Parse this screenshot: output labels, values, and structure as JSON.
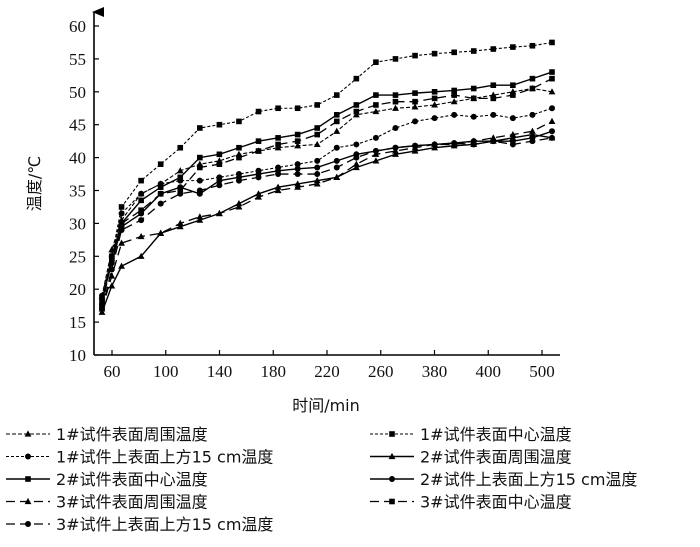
{
  "chart_data": {
    "type": "line",
    "xlabel": "时间/min",
    "ylabel": "温度/℃",
    "ylim": [
      10,
      60
    ],
    "yticks": [
      10,
      15,
      20,
      25,
      30,
      35,
      40,
      45,
      50,
      55,
      60
    ],
    "x": [
      60,
      70,
      80,
      100,
      120,
      140,
      160,
      180,
      200,
      220,
      240,
      260,
      280,
      300,
      320,
      340,
      360,
      380,
      400,
      420,
      440,
      460,
      480,
      500,
      520
    ],
    "xtick_labels": [
      "60",
      "100",
      "140",
      "180",
      "220",
      "260",
      "380",
      "400",
      "500"
    ],
    "grid": false,
    "legend": "bottom",
    "series": [
      {
        "name": "1#试件表面周围温度",
        "values": [
          19,
          26,
          30.5,
          34.5,
          36,
          38,
          39,
          39.5,
          40.5,
          41,
          41.5,
          41.8,
          42,
          44,
          46.5,
          47,
          47.5,
          47.7,
          48,
          48.5,
          49,
          49.5,
          50,
          50.5,
          50
        ]
      },
      {
        "name": "1#试件表面中心温度",
        "values": [
          17.5,
          25,
          32.5,
          36.5,
          39,
          41.5,
          44.5,
          45,
          45.5,
          47,
          47.5,
          47.5,
          48,
          49.5,
          52,
          54.5,
          55,
          55.5,
          55.8,
          56,
          56.2,
          56.5,
          56.8,
          57,
          57.5
        ]
      },
      {
        "name": "1#试件上表面上方15 cm温度",
        "values": [
          19,
          25,
          31.5,
          34.5,
          36,
          36.5,
          36.5,
          37,
          37.5,
          38,
          38.5,
          39,
          39.5,
          41.5,
          42,
          43,
          44.5,
          45.5,
          46,
          46.5,
          46.2,
          46.5,
          46,
          46.5,
          47.5
        ]
      },
      {
        "name": "2#试件表面周围温度",
        "values": [
          16.5,
          20.5,
          23.5,
          25,
          28.5,
          29.5,
          30.5,
          31.5,
          33,
          34.5,
          35.5,
          36,
          36.5,
          37,
          38.5,
          39.5,
          40.5,
          41,
          41.5,
          41.8,
          42,
          42.5,
          43,
          43.5,
          43
        ]
      },
      {
        "name": "2#试件表面中心温度",
        "values": [
          18,
          25,
          30,
          33.5,
          35.5,
          37,
          40,
          40.5,
          41.5,
          42.5,
          43,
          43.5,
          44.5,
          46.5,
          48,
          49.5,
          49.5,
          49.8,
          50,
          50.2,
          50.5,
          51,
          51,
          52,
          53
        ]
      },
      {
        "name": "2#试件上表面上方15 cm温度",
        "values": [
          18.5,
          24,
          29.5,
          31.5,
          34.5,
          35.5,
          34.5,
          36.5,
          37,
          37.5,
          38,
          38.3,
          38.5,
          39.5,
          40.5,
          41,
          41.5,
          41.8,
          42,
          42.2,
          42.5,
          42.5,
          42.5,
          43,
          44
        ]
      },
      {
        "name": "3#试件表面周围温度",
        "values": [
          17,
          22,
          27,
          28,
          28.5,
          30,
          31,
          31.5,
          32.5,
          34,
          35,
          35.5,
          36,
          37,
          39,
          40.5,
          41,
          41.5,
          42,
          42,
          42.5,
          43,
          43.5,
          44,
          45.5
        ]
      },
      {
        "name": "3#试件表面中心温度",
        "values": [
          17.5,
          24.5,
          30,
          32,
          34.5,
          35,
          38.5,
          39,
          40,
          41,
          42,
          42.5,
          43.5,
          45.5,
          47,
          48,
          48.5,
          48.5,
          49,
          49.5,
          49,
          49,
          49.5,
          50.5,
          52
        ]
      },
      {
        "name": "3#试件上表面上方15 cm温度",
        "values": [
          17,
          23,
          29,
          30.5,
          33,
          34.5,
          35,
          35.8,
          36.5,
          37,
          37.5,
          37.5,
          37.5,
          38.5,
          40,
          41,
          41.5,
          41.8,
          42,
          42.2,
          42,
          42.5,
          42,
          42.5,
          43
        ]
      }
    ]
  }
}
